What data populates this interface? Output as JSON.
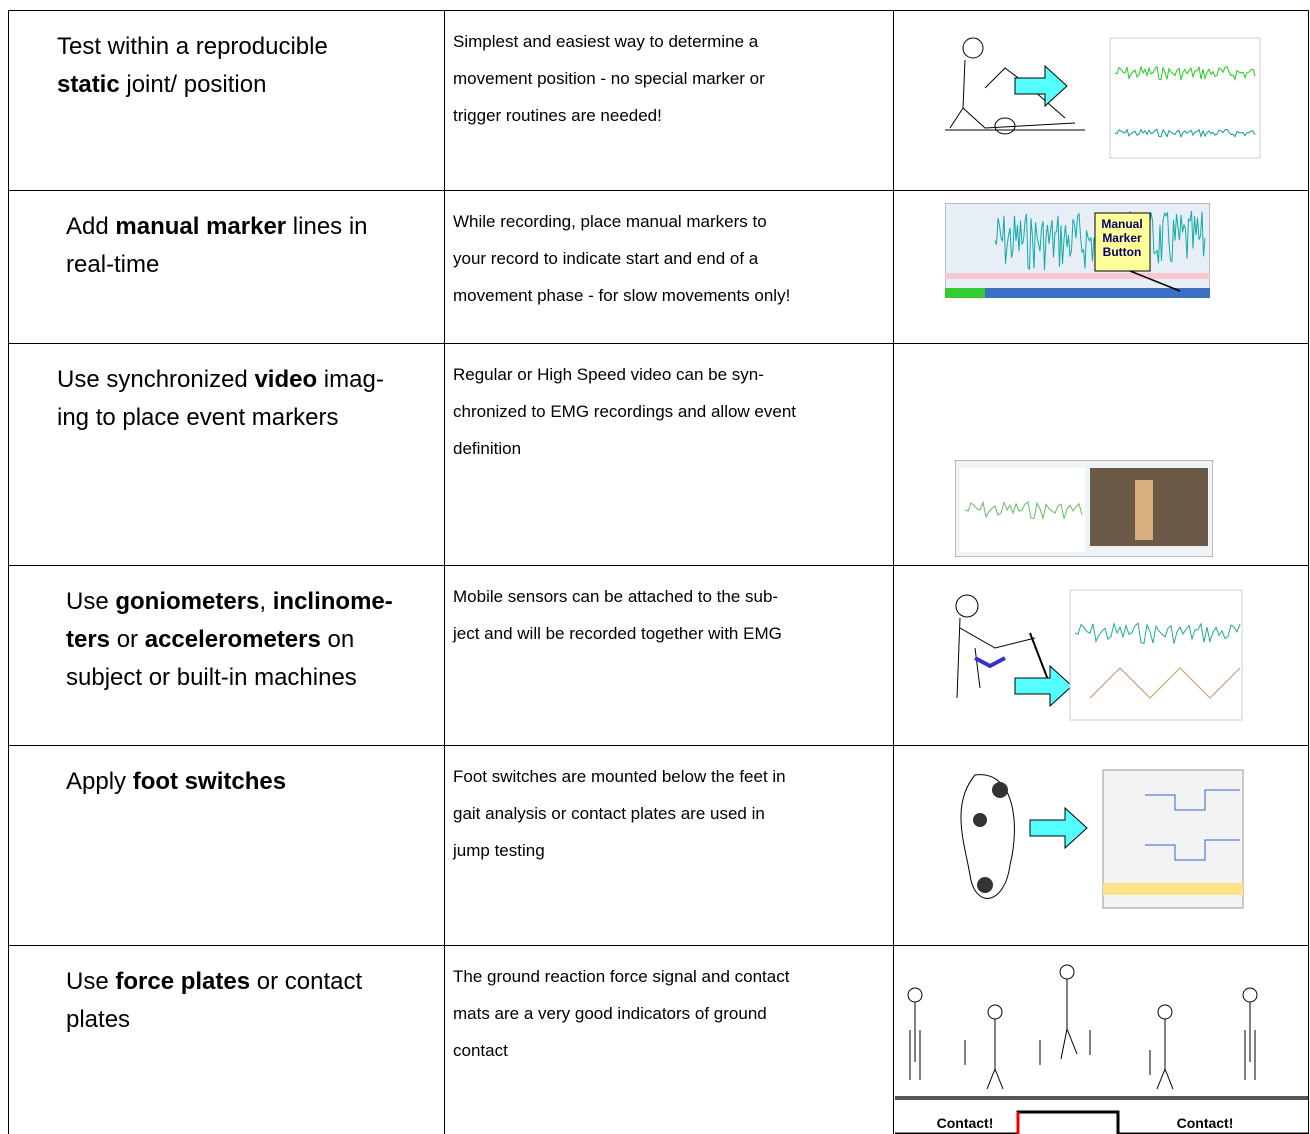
{
  "rows": [
    {
      "title": [
        [
          {
            "text": "Test within a reproducible",
            "bold": false
          }
        ],
        [
          {
            "text": "static",
            "bold": true
          },
          {
            "text": " joint/ position",
            "bold": false
          }
        ]
      ],
      "description": [
        "Simplest and easiest way to determine a",
        "movement position - no special marker or",
        "trigger routines are needed!"
      ]
    },
    {
      "title": [
        [
          {
            "text": "Add ",
            "bold": false
          },
          {
            "text": "manual marker",
            "bold": true
          },
          {
            "text": " lines in",
            "bold": false
          }
        ],
        [
          {
            "text": "real-time",
            "bold": false
          }
        ]
      ],
      "description": [
        "While recording, place manual markers to",
        "your record to indicate start and end of a",
        "movement phase - for slow movements only!"
      ],
      "image_label": [
        "Manual",
        "Marker",
        "Button"
      ]
    },
    {
      "title": [
        [
          {
            "text": "Use synchronized ",
            "bold": false
          },
          {
            "text": "video",
            "bold": true
          },
          {
            "text": " imag-",
            "bold": false
          }
        ],
        [
          {
            "text": "ing to place event markers",
            "bold": false
          }
        ]
      ],
      "description": [
        "Regular or High Speed video can be syn-",
        "chronized to EMG recordings and allow event",
        "definition"
      ]
    },
    {
      "title": [
        [
          {
            "text": "Use ",
            "bold": false
          },
          {
            "text": "goniometers",
            "bold": true
          },
          {
            "text": ", ",
            "bold": false
          },
          {
            "text": "inclinome-",
            "bold": true
          }
        ],
        [
          {
            "text": "ters",
            "bold": true
          },
          {
            "text": " or ",
            "bold": false
          },
          {
            "text": "accelerometers",
            "bold": true
          },
          {
            "text": " on",
            "bold": false
          }
        ],
        [
          {
            "text": "subject or built-in machines",
            "bold": false
          }
        ]
      ],
      "description": [
        "Mobile sensors can be attached to the sub-",
        "ject and will be recorded together with EMG"
      ]
    },
    {
      "title": [
        [
          {
            "text": "Apply ",
            "bold": false
          },
          {
            "text": "foot switches",
            "bold": true
          }
        ]
      ],
      "description": [
        "Foot switches are mounted below the feet in",
        "gait analysis or contact plates are used in",
        "jump testing"
      ]
    },
    {
      "title": [
        [
          {
            "text": "Use ",
            "bold": false
          },
          {
            "text": "force plates",
            "bold": true
          },
          {
            "text": " or contact",
            "bold": false
          }
        ],
        [
          {
            "text": "plates",
            "bold": false
          }
        ]
      ],
      "description": [
        "The ground reaction force signal and contact",
        "mats are a very good indicators of ground",
        "contact"
      ],
      "image_label": [
        "Contact!",
        "Contact!"
      ]
    }
  ]
}
